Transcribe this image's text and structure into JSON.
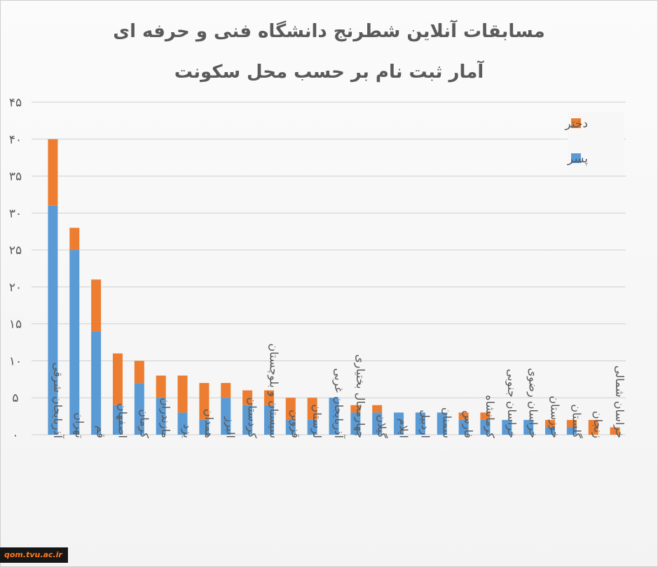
{
  "chart_data": {
    "type": "bar",
    "stacked": true,
    "title": "مسابقات آنلاین شطرنج دانشگاه فنی و حرفه ای",
    "subtitle": "آمار ثبت نام بر حسب محل سکونت",
    "ylim": [
      0,
      45
    ],
    "yticks": [
      "۰",
      "۵",
      "۱۰",
      "۱۵",
      "۲۰",
      "۲۵",
      "۳۰",
      "۳۵",
      "۴۰",
      "۴۵"
    ],
    "grid": true,
    "legend_position": "top-right",
    "categories": [
      "آذربایجان شرقی",
      "تهران",
      "قم",
      "اصفهان",
      "کرمان",
      "مازندران",
      "یزد",
      "همدان",
      "البرز",
      "کردستان",
      "سیستان و بلوچستان",
      "قزوین",
      "لرستان",
      "آذربایجان غربی",
      "چهارمحال بختیاری",
      "گیلان",
      "ایلام",
      "اردبیل",
      "سمنان",
      "فارس",
      "کرمانشاه",
      "خراسان جنوبی",
      "خراسان رضوی",
      "خوزستان",
      "گلستان",
      "زنجان",
      "خراسان شمالی"
    ],
    "series": [
      {
        "name": "پسر",
        "color": "#5b9bd5",
        "values": [
          31,
          25,
          14,
          4,
          7,
          5,
          3,
          2,
          5,
          4,
          4,
          2,
          2,
          5,
          3,
          3,
          3,
          3,
          3,
          2,
          2,
          2,
          2,
          1,
          1,
          0,
          0
        ]
      },
      {
        "name": "دختر",
        "color": "#ed7d31",
        "values": [
          9,
          3,
          7,
          7,
          3,
          3,
          5,
          5,
          2,
          2,
          2,
          3,
          3,
          0,
          1,
          1,
          0,
          0,
          0,
          1,
          1,
          0,
          0,
          1,
          1,
          2,
          1
        ]
      }
    ]
  },
  "watermark": "qom.tvu.ac.ir"
}
